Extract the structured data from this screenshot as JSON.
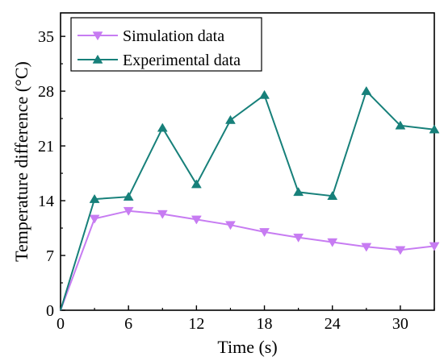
{
  "chart_data": {
    "type": "line",
    "title": "",
    "xlabel": "Time (s)",
    "ylabel": "Temperature difference (°C)",
    "xlim": [
      0,
      33
    ],
    "ylim": [
      0,
      38
    ],
    "xticks": [
      0,
      6,
      12,
      18,
      24,
      30
    ],
    "yticks": [
      0,
      7,
      14,
      21,
      28,
      35
    ],
    "legend_position": "top-left",
    "grid": false,
    "series": [
      {
        "name": "Simulation data",
        "color": "#c77cf2",
        "marker": "triangle-down",
        "x": [
          0,
          3,
          6,
          9,
          12,
          15,
          18,
          21,
          24,
          27,
          30,
          33
        ],
        "y": [
          0,
          11.7,
          12.7,
          12.3,
          11.6,
          10.9,
          10.0,
          9.3,
          8.7,
          8.1,
          7.7,
          8.2
        ]
      },
      {
        "name": "Experimental data",
        "color": "#17807a",
        "marker": "triangle-up",
        "x": [
          0,
          3,
          6,
          9,
          12,
          15,
          18,
          21,
          24,
          27,
          30,
          33
        ],
        "y": [
          0,
          14.2,
          14.5,
          23.3,
          16.1,
          24.3,
          27.5,
          15.1,
          14.6,
          28.0,
          23.6,
          23.1
        ]
      }
    ]
  }
}
